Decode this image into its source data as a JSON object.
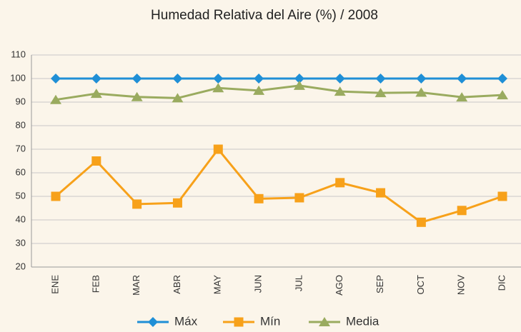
{
  "chart_data": {
    "type": "line",
    "title": "Humedad Relativa del Aire  (%) / 2008",
    "categories": [
      "ENE",
      "FEB",
      "MAR",
      "ABR",
      "MAY",
      "JUN",
      "JUL",
      "AGO",
      "SEP",
      "OCT",
      "NOV",
      "DIC"
    ],
    "series": [
      {
        "name": "Máx",
        "color": "#1f8fd6",
        "marker": "diamond",
        "values": [
          100,
          100,
          100,
          100,
          100,
          100,
          100,
          100,
          100,
          100,
          100,
          100
        ]
      },
      {
        "name": "Mín",
        "color": "#f7a11a",
        "marker": "square",
        "values": [
          50,
          65,
          46.7,
          47.2,
          70,
          49,
          49.4,
          55.8,
          51.5,
          39,
          44,
          50
        ]
      },
      {
        "name": "Media",
        "color": "#9aab5f",
        "marker": "triangle",
        "values": [
          91,
          93.6,
          92.2,
          91.7,
          96,
          94.9,
          97,
          94.5,
          93.9,
          94.1,
          92.1,
          93
        ]
      }
    ],
    "ylim": [
      20,
      110
    ],
    "yticks": [
      20,
      30,
      40,
      50,
      60,
      70,
      80,
      90,
      100,
      110
    ],
    "grid": true,
    "legend": "bottom"
  }
}
